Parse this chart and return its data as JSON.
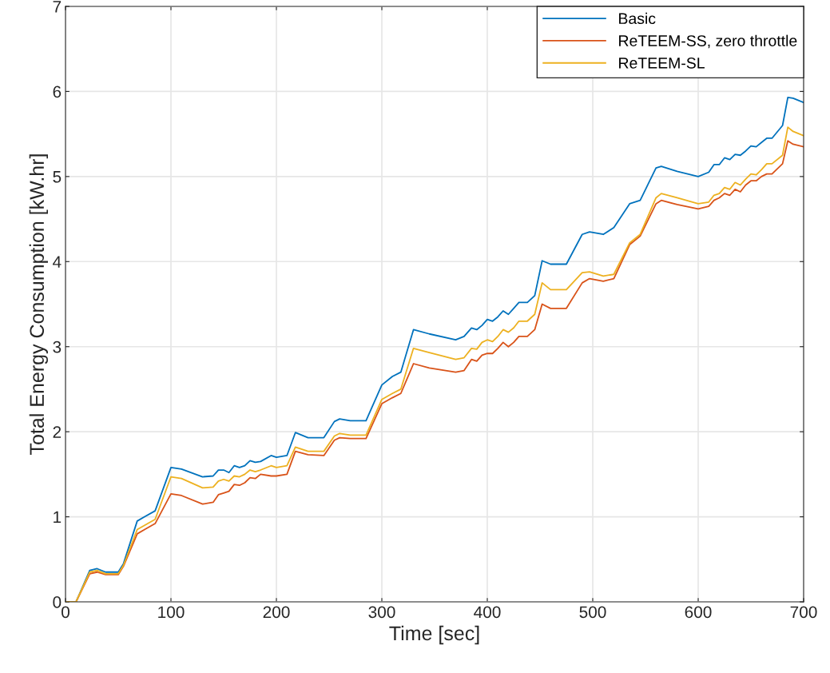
{
  "chart_data": {
    "type": "line",
    "xlabel": "Time [sec]",
    "ylabel": "Total Energy Consumption [kW.hr]",
    "x": [
      0,
      10,
      23,
      30,
      38,
      50,
      55,
      68,
      75,
      85,
      100,
      110,
      130,
      140,
      145,
      150,
      155,
      160,
      165,
      170,
      175,
      180,
      185,
      195,
      200,
      210,
      218,
      230,
      245,
      255,
      260,
      270,
      285,
      300,
      310,
      318,
      330,
      345,
      370,
      378,
      385,
      390,
      395,
      400,
      405,
      410,
      415,
      420,
      425,
      430,
      438,
      445,
      452,
      460,
      475,
      490,
      497,
      510,
      520,
      535,
      545,
      560,
      565,
      580,
      600,
      610,
      615,
      620,
      625,
      630,
      635,
      640,
      645,
      650,
      655,
      660,
      665,
      670,
      680,
      685,
      690,
      700
    ],
    "series": [
      {
        "name": "Basic",
        "color": "#0072bd",
        "values": [
          0,
          0,
          0.37,
          0.39,
          0.35,
          0.35,
          0.45,
          0.95,
          1.0,
          1.07,
          1.58,
          1.56,
          1.47,
          1.48,
          1.55,
          1.55,
          1.52,
          1.6,
          1.58,
          1.6,
          1.66,
          1.64,
          1.65,
          1.72,
          1.7,
          1.72,
          1.99,
          1.93,
          1.93,
          2.12,
          2.15,
          2.13,
          2.13,
          2.55,
          2.65,
          2.7,
          3.2,
          3.15,
          3.08,
          3.12,
          3.22,
          3.2,
          3.25,
          3.32,
          3.3,
          3.35,
          3.42,
          3.38,
          3.45,
          3.52,
          3.52,
          3.6,
          4.01,
          3.97,
          3.97,
          4.32,
          4.35,
          4.32,
          4.4,
          4.68,
          4.72,
          5.1,
          5.12,
          5.06,
          5.0,
          5.05,
          5.14,
          5.14,
          5.22,
          5.2,
          5.26,
          5.25,
          5.3,
          5.36,
          5.35,
          5.4,
          5.45,
          5.45,
          5.6,
          5.93,
          5.92,
          5.87
        ]
      },
      {
        "name": "ReTEEM-SS, zero throttle",
        "color": "#d95319",
        "values": [
          0,
          0,
          0.33,
          0.35,
          0.32,
          0.32,
          0.42,
          0.8,
          0.85,
          0.92,
          1.27,
          1.25,
          1.15,
          1.17,
          1.26,
          1.28,
          1.3,
          1.38,
          1.37,
          1.4,
          1.46,
          1.45,
          1.5,
          1.48,
          1.48,
          1.5,
          1.77,
          1.73,
          1.72,
          1.9,
          1.93,
          1.92,
          1.92,
          2.33,
          2.4,
          2.45,
          2.8,
          2.75,
          2.7,
          2.72,
          2.85,
          2.83,
          2.9,
          2.92,
          2.92,
          2.98,
          3.05,
          3.0,
          3.05,
          3.12,
          3.12,
          3.2,
          3.5,
          3.45,
          3.45,
          3.75,
          3.8,
          3.77,
          3.8,
          4.2,
          4.3,
          4.68,
          4.72,
          4.67,
          4.62,
          4.65,
          4.72,
          4.75,
          4.8,
          4.78,
          4.85,
          4.82,
          4.9,
          4.95,
          4.95,
          5.0,
          5.03,
          5.03,
          5.15,
          5.42,
          5.38,
          5.35
        ]
      },
      {
        "name": "ReTEEM-SL",
        "color": "#edb120",
        "values": [
          0,
          0,
          0.35,
          0.37,
          0.33,
          0.33,
          0.43,
          0.85,
          0.9,
          0.97,
          1.47,
          1.45,
          1.34,
          1.35,
          1.42,
          1.44,
          1.42,
          1.48,
          1.47,
          1.5,
          1.55,
          1.53,
          1.55,
          1.6,
          1.58,
          1.6,
          1.82,
          1.77,
          1.77,
          1.95,
          1.98,
          1.96,
          1.96,
          2.38,
          2.45,
          2.5,
          2.98,
          2.93,
          2.85,
          2.87,
          2.98,
          2.97,
          3.05,
          3.08,
          3.06,
          3.12,
          3.2,
          3.17,
          3.22,
          3.3,
          3.3,
          3.38,
          3.75,
          3.67,
          3.67,
          3.87,
          3.88,
          3.83,
          3.85,
          4.22,
          4.32,
          4.75,
          4.8,
          4.75,
          4.68,
          4.7,
          4.78,
          4.8,
          4.87,
          4.85,
          4.93,
          4.9,
          4.97,
          5.03,
          5.02,
          5.08,
          5.15,
          5.15,
          5.25,
          5.58,
          5.53,
          5.48
        ]
      }
    ],
    "xlim": [
      0,
      700
    ],
    "xticks": [
      0,
      100,
      200,
      300,
      400,
      500,
      600,
      700
    ],
    "ylim": [
      0,
      7
    ],
    "yticks": [
      0,
      1,
      2,
      3,
      4,
      5,
      6,
      7
    ],
    "grid": true,
    "legend": "top right",
    "marker": "none",
    "line_style": "solid"
  }
}
